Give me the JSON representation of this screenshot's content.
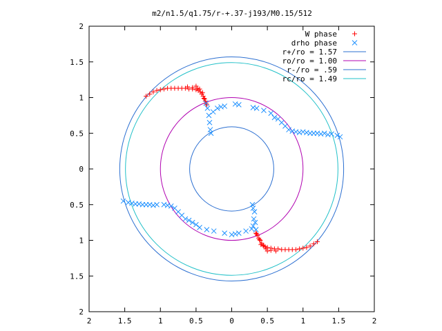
{
  "chart_data": {
    "type": "scatter",
    "title": "m2/n1.5/q1.75/r-+.37-j193/M0.15/512",
    "xlabel": "",
    "ylabel": "",
    "xlim": [
      -2,
      2
    ],
    "ylim": [
      -2,
      2
    ],
    "x_ticks": [
      -2,
      -1.5,
      -1,
      -0.5,
      0,
      0.5,
      1,
      1.5,
      2
    ],
    "y_ticks": [
      -2,
      -1.5,
      -1,
      -0.5,
      0,
      0.5,
      1,
      1.5,
      2
    ],
    "x_tick_labels": [
      "2",
      "1.5",
      "1",
      "0.5",
      "0",
      "0.5",
      "1",
      "1.5",
      "2"
    ],
    "y_tick_labels": [
      "2",
      "1.5",
      "1",
      "0.5",
      "0",
      "0.5",
      "1",
      "1.5",
      "2"
    ],
    "grid": false,
    "legend_position": "top-right",
    "series": [
      {
        "name": "W phase",
        "kind": "points",
        "marker": "plus",
        "color": "#ff0000",
        "points": [
          [
            -1.2,
            1.02
          ],
          [
            -1.15,
            1.05
          ],
          [
            -1.1,
            1.08
          ],
          [
            -1.05,
            1.1
          ],
          [
            -1.0,
            1.11
          ],
          [
            -0.95,
            1.12
          ],
          [
            -0.9,
            1.13
          ],
          [
            -0.85,
            1.13
          ],
          [
            -0.8,
            1.13
          ],
          [
            -0.75,
            1.13
          ],
          [
            -0.7,
            1.13
          ],
          [
            -0.65,
            1.13
          ],
          [
            -0.6,
            1.12
          ],
          [
            -0.55,
            1.12
          ],
          [
            -0.5,
            1.11
          ],
          [
            -0.47,
            1.1
          ],
          [
            -0.44,
            1.08
          ],
          [
            -0.42,
            1.05
          ],
          [
            -0.4,
            1.02
          ],
          [
            -0.38,
            0.98
          ],
          [
            -0.37,
            0.95
          ],
          [
            -0.36,
            0.92
          ],
          [
            -0.55,
            1.14
          ],
          [
            -0.62,
            1.15
          ],
          [
            -0.48,
            1.13
          ],
          [
            -0.41,
            1.07
          ],
          [
            -0.39,
            0.99
          ],
          [
            -0.35,
            0.9
          ],
          [
            -0.5,
            1.16
          ],
          [
            -0.45,
            1.12
          ],
          [
            1.2,
            -1.02
          ],
          [
            1.15,
            -1.05
          ],
          [
            1.1,
            -1.08
          ],
          [
            1.05,
            -1.1
          ],
          [
            1.0,
            -1.11
          ],
          [
            0.95,
            -1.12
          ],
          [
            0.9,
            -1.13
          ],
          [
            0.85,
            -1.13
          ],
          [
            0.8,
            -1.13
          ],
          [
            0.75,
            -1.13
          ],
          [
            0.7,
            -1.13
          ],
          [
            0.65,
            -1.12
          ],
          [
            0.6,
            -1.12
          ],
          [
            0.55,
            -1.11
          ],
          [
            0.5,
            -1.1
          ],
          [
            0.47,
            -1.09
          ],
          [
            0.44,
            -1.07
          ],
          [
            0.42,
            -1.04
          ],
          [
            0.4,
            -1.0
          ],
          [
            0.38,
            -0.97
          ],
          [
            0.36,
            -0.93
          ],
          [
            0.34,
            -0.9
          ],
          [
            0.55,
            -1.14
          ],
          [
            0.62,
            -1.15
          ],
          [
            0.48,
            -1.12
          ],
          [
            0.41,
            -1.06
          ],
          [
            0.39,
            -0.99
          ],
          [
            0.35,
            -0.91
          ],
          [
            0.45,
            -1.08
          ],
          [
            0.5,
            -1.15
          ]
        ]
      },
      {
        "name": "drho phase",
        "kind": "points",
        "marker": "cross",
        "color": "#1e90ff",
        "points": [
          [
            -0.36,
            0.92
          ],
          [
            -0.34,
            0.85
          ],
          [
            -0.32,
            0.75
          ],
          [
            -0.31,
            0.65
          ],
          [
            -0.3,
            0.55
          ],
          [
            -0.29,
            0.5
          ],
          [
            -0.26,
            0.8
          ],
          [
            -0.2,
            0.85
          ],
          [
            -0.15,
            0.87
          ],
          [
            -0.1,
            0.88
          ],
          [
            0.05,
            0.91
          ],
          [
            0.1,
            0.9
          ],
          [
            0.3,
            0.86
          ],
          [
            0.35,
            0.85
          ],
          [
            0.45,
            0.82
          ],
          [
            0.55,
            0.78
          ],
          [
            0.65,
            0.7
          ],
          [
            0.7,
            0.65
          ],
          [
            0.75,
            0.6
          ],
          [
            0.8,
            0.55
          ],
          [
            0.85,
            0.53
          ],
          [
            0.9,
            0.52
          ],
          [
            1.0,
            0.52
          ],
          [
            1.1,
            0.5
          ],
          [
            1.2,
            0.5
          ],
          [
            1.3,
            0.5
          ],
          [
            1.4,
            0.49
          ],
          [
            1.48,
            0.47
          ],
          [
            1.52,
            0.45
          ],
          [
            0.95,
            0.51
          ],
          [
            1.05,
            0.51
          ],
          [
            1.15,
            0.5
          ],
          [
            1.25,
            0.49
          ],
          [
            1.35,
            0.48
          ],
          [
            0.6,
            0.72
          ],
          [
            -1.52,
            -0.45
          ],
          [
            -1.45,
            -0.47
          ],
          [
            -1.35,
            -0.49
          ],
          [
            -1.25,
            -0.5
          ],
          [
            -1.15,
            -0.5
          ],
          [
            -1.05,
            -0.5
          ],
          [
            -0.95,
            -0.5
          ],
          [
            -0.85,
            -0.52
          ],
          [
            -0.8,
            -0.55
          ],
          [
            -0.75,
            -0.6
          ],
          [
            -0.7,
            -0.65
          ],
          [
            -0.65,
            -0.7
          ],
          [
            -0.6,
            -0.72
          ],
          [
            -0.55,
            -0.75
          ],
          [
            -0.5,
            -0.78
          ],
          [
            -0.45,
            -0.82
          ],
          [
            -0.35,
            -0.85
          ],
          [
            -0.25,
            -0.87
          ],
          [
            -0.1,
            -0.9
          ],
          [
            0.0,
            -0.92
          ],
          [
            0.05,
            -0.91
          ],
          [
            0.1,
            -0.9
          ],
          [
            0.2,
            -0.87
          ],
          [
            0.28,
            -0.84
          ],
          [
            0.3,
            -0.8
          ],
          [
            0.31,
            -0.7
          ],
          [
            0.32,
            -0.6
          ],
          [
            0.3,
            -0.55
          ],
          [
            0.29,
            -0.5
          ],
          [
            0.33,
            -0.75
          ],
          [
            0.34,
            -0.85
          ],
          [
            -1.4,
            -0.48
          ],
          [
            -1.3,
            -0.49
          ],
          [
            -1.2,
            -0.5
          ],
          [
            -1.1,
            -0.51
          ],
          [
            -0.9,
            -0.51
          ]
        ]
      },
      {
        "name": "r+/ro = 1.57",
        "kind": "circle",
        "radius": 1.57,
        "color": "#2b6fd1"
      },
      {
        "name": "ro/ro = 1.00",
        "kind": "circle",
        "radius": 1.0,
        "color": "#b000b0"
      },
      {
        "name": "r-/ro = .59",
        "kind": "circle",
        "radius": 0.59,
        "color": "#2b6fd1"
      },
      {
        "name": "rc/ro = 1.49",
        "kind": "circle",
        "radius": 1.49,
        "color": "#20c0c8"
      }
    ]
  }
}
